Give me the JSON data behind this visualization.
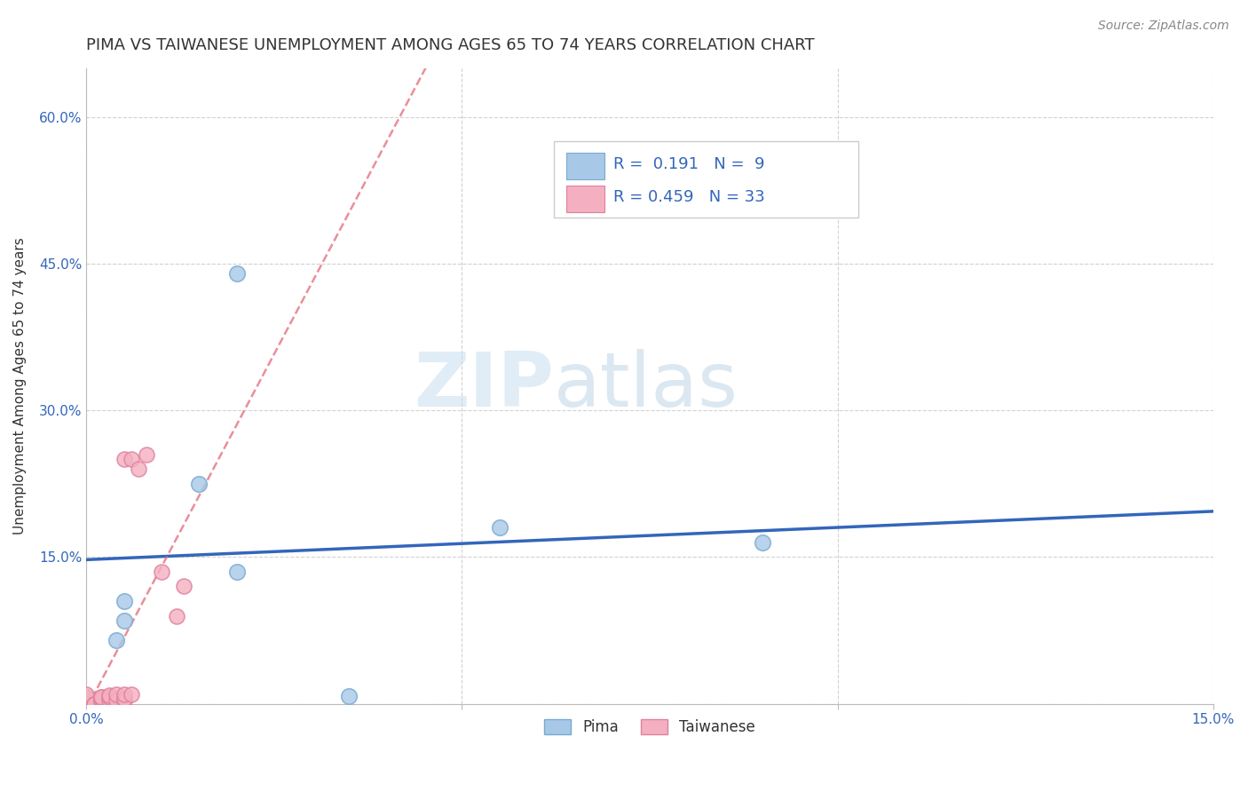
{
  "title": "PIMA VS TAIWANESE UNEMPLOYMENT AMONG AGES 65 TO 74 YEARS CORRELATION CHART",
  "source": "Source: ZipAtlas.com",
  "ylabel": "Unemployment Among Ages 65 to 74 years",
  "xlim": [
    0.0,
    0.15
  ],
  "ylim": [
    0.0,
    0.65
  ],
  "xticks": [
    0.0,
    0.05,
    0.1,
    0.15
  ],
  "xticklabels": [
    "0.0%",
    "",
    "",
    "15.0%"
  ],
  "yticks": [
    0.0,
    0.15,
    0.3,
    0.45,
    0.6
  ],
  "yticklabels": [
    "",
    "15.0%",
    "30.0%",
    "45.0%",
    "60.0%"
  ],
  "grid_color": "#cccccc",
  "background_color": "#ffffff",
  "watermark_zip": "ZIP",
  "watermark_atlas": "atlas",
  "pima_color": "#A8C8E8",
  "pima_edge_color": "#7AAAD0",
  "taiwanese_color": "#F4B0C0",
  "taiwanese_edge_color": "#E080A0",
  "pima_R": 0.191,
  "pima_N": 9,
  "taiwanese_R": 0.459,
  "taiwanese_N": 33,
  "pima_points_x": [
    0.005,
    0.015,
    0.02,
    0.02,
    0.005,
    0.004,
    0.055,
    0.035,
    0.09
  ],
  "pima_points_y": [
    0.105,
    0.225,
    0.135,
    0.44,
    0.085,
    0.065,
    0.18,
    0.008,
    0.165
  ],
  "taiwanese_points_x": [
    0.0,
    0.0,
    0.0,
    0.0,
    0.0,
    0.0,
    0.0,
    0.0,
    0.0,
    0.001,
    0.001,
    0.002,
    0.002,
    0.002,
    0.002,
    0.002,
    0.002,
    0.003,
    0.003,
    0.003,
    0.004,
    0.004,
    0.005,
    0.005,
    0.005,
    0.005,
    0.006,
    0.006,
    0.007,
    0.008,
    0.01,
    0.012,
    0.013
  ],
  "taiwanese_points_y": [
    0.0,
    0.0,
    0.003,
    0.003,
    0.005,
    0.005,
    0.007,
    0.007,
    0.01,
    0.0,
    0.0,
    0.003,
    0.003,
    0.005,
    0.005,
    0.007,
    0.007,
    0.003,
    0.007,
    0.009,
    0.003,
    0.01,
    0.003,
    0.005,
    0.01,
    0.25,
    0.01,
    0.25,
    0.24,
    0.255,
    0.135,
    0.09,
    0.12
  ],
  "pima_line_color": "#3366BB",
  "taiwanese_line_color": "#E06070",
  "title_fontsize": 13,
  "axis_label_fontsize": 11,
  "tick_fontsize": 11,
  "legend_fontsize": 13
}
